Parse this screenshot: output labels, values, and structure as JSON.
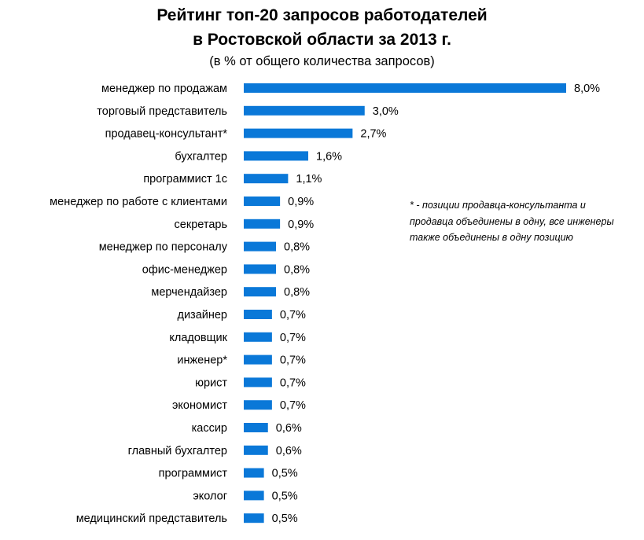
{
  "chart_data": {
    "type": "bar",
    "orientation": "horizontal",
    "title_line1": "Рейтинг топ-20 запросов работодателей",
    "title_line2": "в Ростовской области за 2013 г.",
    "subtitle": "(в % от общего количества запросов)",
    "categories": [
      "менеджер по продажам",
      "торговый представитель",
      "продавец-консультант*",
      "бухгалтер",
      "программист 1с",
      "менеджер по работе с клиентами",
      "секретарь",
      "менеджер по персоналу",
      "офис-менеджер",
      "мерчендайзер",
      "дизайнер",
      "кладовщик",
      "инженер*",
      "юрист",
      "экономист",
      "кассир",
      "главный бухгалтер",
      "программист",
      "эколог",
      "медицинский представитель"
    ],
    "values": [
      8.0,
      3.0,
      2.7,
      1.6,
      1.1,
      0.9,
      0.9,
      0.8,
      0.8,
      0.8,
      0.7,
      0.7,
      0.7,
      0.7,
      0.7,
      0.6,
      0.6,
      0.5,
      0.5,
      0.5
    ],
    "value_labels": [
      "8,0%",
      "3,0%",
      "2,7%",
      "1,6%",
      "1,1%",
      "0,9%",
      "0,9%",
      "0,8%",
      "0,8%",
      "0,8%",
      "0,7%",
      "0,7%",
      "0,7%",
      "0,7%",
      "0,7%",
      "0,6%",
      "0,6%",
      "0,5%",
      "0,5%",
      "0,5%"
    ],
    "xlim": [
      0,
      8.0
    ],
    "grid": false,
    "bar_color": "#0a78d8"
  },
  "footnote": [
    "* - позиции продавца-консультанта и",
    "продавца объединены в одну, все инженеры",
    "также объединены в одну позицию"
  ]
}
